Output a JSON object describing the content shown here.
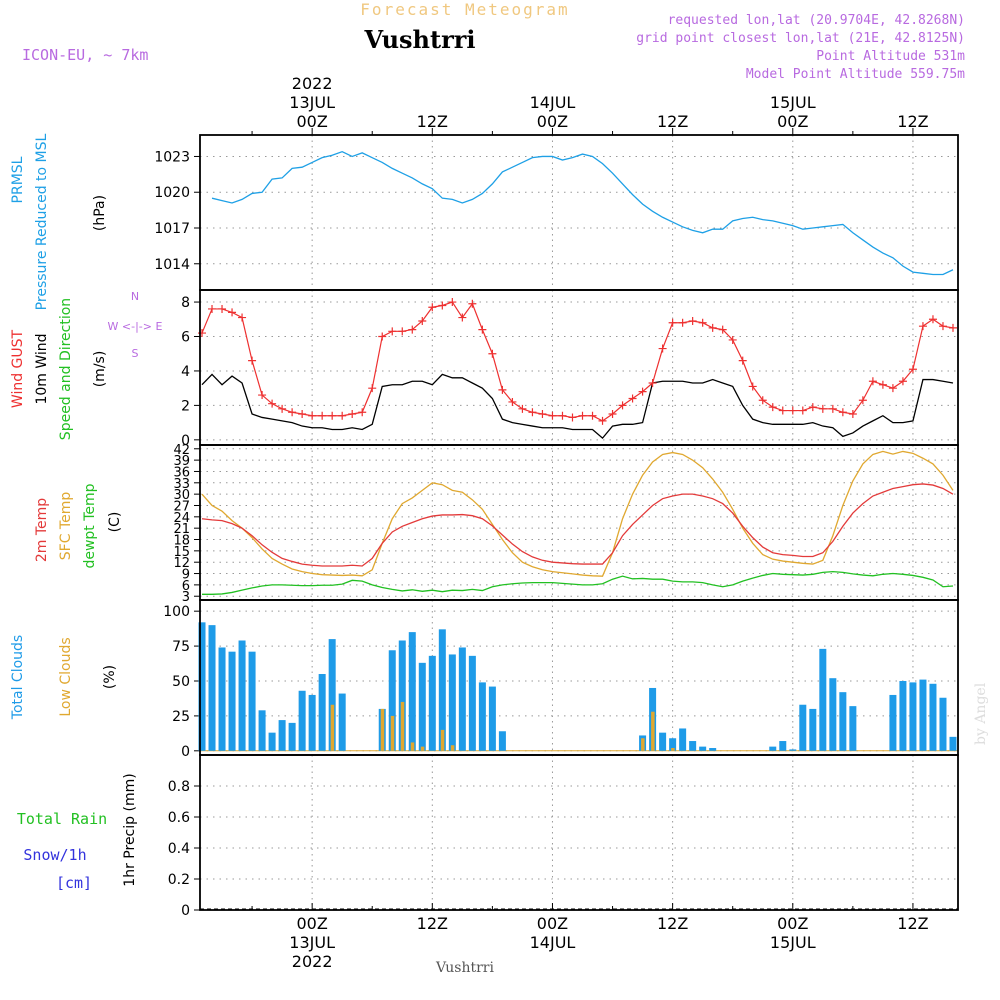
{
  "header": {
    "forecast_title": "Forecast Meteogram",
    "location": "Vushtrri",
    "model": "ICON-EU, ~ 7km",
    "requested": "requested lon,lat (20.9704E, 42.8268N)",
    "grid_point": "grid point closest lon,lat (21E, 42.8125N)",
    "point_altitude": "Point Altitude 531m",
    "model_altitude": "Model Point Altitude 559.75m",
    "footer_location": "Vushtrri",
    "credit": "by Angel"
  },
  "time_axis": {
    "top_labels": [
      {
        "lines": [
          "2022",
          "13JUL",
          "00Z"
        ],
        "t": 0
      },
      {
        "lines": [
          "12Z"
        ],
        "t": 12
      },
      {
        "lines": [
          "14JUL",
          "00Z"
        ],
        "t": 24
      },
      {
        "lines": [
          "12Z"
        ],
        "t": 36
      },
      {
        "lines": [
          "15JUL",
          "00Z"
        ],
        "t": 48
      },
      {
        "lines": [
          "12Z"
        ],
        "t": 60
      }
    ],
    "bottom_labels": [
      {
        "lines": [
          "00Z",
          "13JUL",
          "2022"
        ],
        "t": 0
      },
      {
        "lines": [
          "12Z"
        ],
        "t": 12
      },
      {
        "lines": [
          "00Z",
          "14JUL"
        ],
        "t": 24
      },
      {
        "lines": [
          "12Z"
        ],
        "t": 36
      },
      {
        "lines": [
          "00Z",
          "15JUL"
        ],
        "t": 48
      },
      {
        "lines": [
          "12Z"
        ],
        "t": 60
      }
    ],
    "range_hours": [
      -11.2,
      64.5
    ]
  },
  "panels": {
    "pressure": {
      "labels": [
        "PRMSL",
        "Pressure Reduced to MSL"
      ],
      "unit": "(hPa)",
      "ticks": [
        1014,
        1017,
        1020,
        1023
      ],
      "ylim": [
        1011.8,
        1024.8
      ]
    },
    "wind": {
      "labels": [
        "Wind GUST",
        "10m Wind",
        "Speed and Direction"
      ],
      "unit": "(m/s)",
      "compass": [
        "N",
        "W <-|-> E",
        "S"
      ],
      "ticks": [
        0,
        2,
        4,
        6,
        8
      ],
      "ylim": [
        -0.3,
        8.7
      ]
    },
    "temp": {
      "labels": [
        "2m Temp",
        "SFC Temp",
        "dewpt Temp"
      ],
      "unit": "(C)",
      "ticks": [
        3,
        6,
        9,
        12,
        15,
        18,
        21,
        24,
        27,
        30,
        33,
        36,
        39,
        42
      ],
      "ylim": [
        2,
        43
      ]
    },
    "clouds": {
      "labels": [
        "Total Clouds",
        "Low Clouds"
      ],
      "unit": "(%)",
      "ticks": [
        0,
        25,
        50,
        75,
        100
      ],
      "ylim": [
        -3,
        108
      ]
    },
    "precip": {
      "labels": [
        "Total Rain",
        "Snow/1h",
        "[cm]"
      ],
      "unit": "1hr Precip (mm)",
      "ticks": [
        0,
        0.2,
        0.4,
        0.6,
        0.8
      ],
      "ylim": [
        0,
        1.0
      ]
    }
  },
  "colors": {
    "pressure": "#1ea0e6",
    "gust": "#ee3030",
    "wind": "#000000",
    "temp2m": "#e33a3a",
    "sfc": "#e0a830",
    "dewpt": "#22c022",
    "total_clouds": "#1e9be8",
    "low_clouds": "#e0a830",
    "rain": "#22c022",
    "snow": "#3333dd",
    "header_purple": "#b86ae0",
    "forecast_title": "#f0c880"
  },
  "chart_data": {
    "type": "line",
    "x_units": "hours from 13JUL 00Z",
    "pressure_hPa": {
      "x": [
        -10,
        -9,
        -8,
        -7,
        -6,
        -5,
        -4,
        -3,
        -2,
        -1,
        0,
        1,
        2,
        3,
        4,
        5,
        6,
        7,
        8,
        9,
        10,
        11,
        12,
        13,
        14,
        15,
        16,
        17,
        18,
        19,
        20,
        21,
        22,
        23,
        24,
        25,
        26,
        27,
        28,
        29,
        30,
        31,
        32,
        33,
        34,
        35,
        36,
        37,
        38,
        39,
        40,
        41,
        42,
        43,
        44,
        45,
        46,
        47,
        48,
        49,
        50,
        51,
        52,
        53,
        54,
        55,
        56,
        57,
        58,
        59,
        60,
        61,
        62,
        63,
        64
      ],
      "y": [
        1019.5,
        1019.3,
        1019.1,
        1019.4,
        1019.9,
        1020.0,
        1021.1,
        1021.2,
        1022.0,
        1022.1,
        1022.5,
        1022.9,
        1023.1,
        1023.4,
        1023.0,
        1023.3,
        1022.9,
        1022.5,
        1022.0,
        1021.6,
        1021.2,
        1020.7,
        1020.3,
        1019.5,
        1019.4,
        1019.1,
        1019.4,
        1019.9,
        1020.7,
        1021.7,
        1022.1,
        1022.5,
        1022.9,
        1023.0,
        1023.0,
        1022.7,
        1022.9,
        1023.2,
        1023.0,
        1022.4,
        1021.6,
        1020.7,
        1019.8,
        1019.0,
        1018.4,
        1017.9,
        1017.5,
        1017.1,
        1016.8,
        1016.6,
        1016.9,
        1016.9,
        1017.6,
        1017.8,
        1017.9,
        1017.7,
        1017.6,
        1017.4,
        1017.2,
        1016.9,
        1017.0,
        1017.1,
        1017.2,
        1017.3,
        1016.6,
        1016.0,
        1015.4,
        1014.9,
        1014.5,
        1013.8,
        1013.3,
        1013.2,
        1013.1,
        1013.1,
        1013.5
      ]
    },
    "wind_gust_ms": {
      "x": [
        -11,
        -10,
        -9,
        -8,
        -7,
        -6,
        -5,
        -4,
        -3,
        -2,
        -1,
        0,
        1,
        2,
        3,
        4,
        5,
        6,
        7,
        8,
        9,
        10,
        11,
        12,
        13,
        14,
        15,
        16,
        17,
        18,
        19,
        20,
        21,
        22,
        23,
        24,
        25,
        26,
        27,
        28,
        29,
        30,
        31,
        32,
        33,
        34,
        35,
        36,
        37,
        38,
        39,
        40,
        41,
        42,
        43,
        44,
        45,
        46,
        47,
        48,
        49,
        50,
        51,
        52,
        53,
        54,
        55,
        56,
        57,
        58,
        59,
        60,
        61,
        62,
        63,
        64
      ],
      "y": [
        6.2,
        7.6,
        7.6,
        7.4,
        7.1,
        4.6,
        2.6,
        2.1,
        1.8,
        1.6,
        1.5,
        1.4,
        1.4,
        1.4,
        1.4,
        1.5,
        1.6,
        3.0,
        6.0,
        6.3,
        6.3,
        6.4,
        6.9,
        7.7,
        7.8,
        8.0,
        7.1,
        7.9,
        6.4,
        5.0,
        2.9,
        2.2,
        1.8,
        1.6,
        1.5,
        1.4,
        1.4,
        1.3,
        1.4,
        1.4,
        1.1,
        1.5,
        2.0,
        2.4,
        2.8,
        3.3,
        5.3,
        6.8,
        6.8,
        6.9,
        6.8,
        6.5,
        6.4,
        5.8,
        4.6,
        3.1,
        2.3,
        1.9,
        1.7,
        1.7,
        1.7,
        1.9,
        1.8,
        1.8,
        1.6,
        1.5,
        2.3,
        3.4,
        3.2,
        3.0,
        3.4,
        4.1,
        6.6,
        7.0,
        6.6,
        6.5
      ]
    },
    "wind_10m_ms": {
      "x": [
        -11,
        -10,
        -9,
        -8,
        -7,
        -6,
        -5,
        -4,
        -3,
        -2,
        -1,
        0,
        1,
        2,
        3,
        4,
        5,
        6,
        7,
        8,
        9,
        10,
        11,
        12,
        13,
        14,
        15,
        16,
        17,
        18,
        19,
        20,
        21,
        22,
        23,
        24,
        25,
        26,
        27,
        28,
        29,
        30,
        31,
        32,
        33,
        34,
        35,
        36,
        37,
        38,
        39,
        40,
        41,
        42,
        43,
        44,
        45,
        46,
        47,
        48,
        49,
        50,
        51,
        52,
        53,
        54,
        55,
        56,
        57,
        58,
        59,
        60,
        61,
        62,
        63,
        64
      ],
      "y": [
        3.2,
        3.8,
        3.2,
        3.7,
        3.3,
        1.5,
        1.3,
        1.2,
        1.1,
        1.0,
        0.8,
        0.7,
        0.7,
        0.6,
        0.6,
        0.7,
        0.6,
        0.9,
        3.1,
        3.2,
        3.2,
        3.4,
        3.4,
        3.2,
        3.8,
        3.6,
        3.6,
        3.3,
        3.0,
        2.4,
        1.2,
        1.0,
        0.9,
        0.8,
        0.7,
        0.7,
        0.7,
        0.6,
        0.6,
        0.6,
        0.1,
        0.8,
        0.9,
        0.9,
        1.0,
        3.3,
        3.4,
        3.4,
        3.4,
        3.3,
        3.3,
        3.5,
        3.3,
        3.1,
        2.0,
        1.2,
        1.0,
        0.9,
        0.9,
        0.9,
        0.9,
        1.0,
        0.8,
        0.7,
        0.2,
        0.4,
        0.8,
        1.1,
        1.4,
        1.0,
        1.0,
        1.1,
        3.5,
        3.5,
        3.4,
        3.3
      ]
    },
    "temp_2m_C": {
      "x": [
        -11,
        -10,
        -9,
        -8,
        -7,
        -6,
        -5,
        -4,
        -3,
        -2,
        -1,
        0,
        1,
        2,
        3,
        4,
        5,
        6,
        7,
        8,
        9,
        10,
        11,
        12,
        13,
        14,
        15,
        16,
        17,
        18,
        19,
        20,
        21,
        22,
        23,
        24,
        25,
        26,
        27,
        28,
        29,
        30,
        31,
        32,
        33,
        34,
        35,
        36,
        37,
        38,
        39,
        40,
        41,
        42,
        43,
        44,
        45,
        46,
        47,
        48,
        49,
        50,
        51,
        52,
        53,
        54,
        55,
        56,
        57,
        58,
        59,
        60,
        61,
        62,
        63,
        64
      ],
      "y": [
        23.5,
        23.2,
        23.0,
        22.2,
        21.0,
        19.0,
        16.6,
        14.6,
        13.0,
        12.2,
        11.5,
        11.2,
        11.0,
        11.0,
        11.0,
        11.2,
        11.0,
        13.0,
        17.0,
        20.0,
        21.5,
        22.5,
        23.5,
        24.2,
        24.5,
        24.5,
        24.6,
        24.3,
        23.5,
        21.6,
        19.2,
        16.8,
        14.8,
        13.4,
        12.5,
        12.0,
        11.8,
        11.6,
        11.5,
        11.5,
        11.5,
        14.5,
        19.0,
        22.0,
        24.5,
        27.0,
        28.8,
        29.5,
        30.0,
        30.0,
        29.5,
        28.8,
        27.5,
        25.0,
        21.5,
        18.5,
        16.0,
        14.5,
        14.0,
        13.8,
        13.5,
        13.5,
        14.5,
        17.5,
        21.5,
        25.0,
        27.5,
        29.5,
        30.5,
        31.5,
        32.0,
        32.5,
        32.7,
        32.4,
        31.5,
        30.0
      ]
    },
    "temp_sfc_C": {
      "x": [
        -11,
        -10,
        -9,
        -8,
        -7,
        -6,
        -5,
        -4,
        -3,
        -2,
        -1,
        0,
        1,
        2,
        3,
        4,
        5,
        6,
        7,
        8,
        9,
        10,
        11,
        12,
        13,
        14,
        15,
        16,
        17,
        18,
        19,
        20,
        21,
        22,
        23,
        24,
        25,
        26,
        27,
        28,
        29,
        30,
        31,
        32,
        33,
        34,
        35,
        36,
        37,
        38,
        39,
        40,
        41,
        42,
        43,
        44,
        45,
        46,
        47,
        48,
        49,
        50,
        51,
        52,
        53,
        54,
        55,
        56,
        57,
        58,
        59,
        60,
        61,
        62,
        63,
        64
      ],
      "y": [
        30.0,
        27.0,
        25.5,
        23.0,
        21.0,
        18.5,
        15.5,
        13.0,
        11.5,
        10.2,
        9.5,
        9.0,
        8.7,
        8.6,
        8.5,
        8.6,
        8.4,
        10.0,
        17.0,
        23.5,
        27.5,
        29.0,
        31.0,
        33.0,
        32.5,
        31.0,
        30.5,
        28.5,
        26.0,
        22.0,
        18.0,
        14.5,
        12.0,
        10.8,
        10.0,
        9.5,
        9.2,
        8.9,
        8.6,
        8.4,
        8.3,
        14.5,
        23.5,
        30.0,
        35.0,
        38.5,
        40.5,
        41.0,
        40.5,
        39.0,
        37.0,
        34.0,
        30.5,
        26.0,
        21.0,
        17.0,
        14.0,
        12.8,
        12.3,
        12.0,
        11.7,
        11.5,
        12.5,
        19.0,
        27.0,
        33.5,
        38.0,
        40.5,
        41.3,
        40.6,
        41.3,
        40.8,
        39.5,
        38.0,
        35.0,
        31.0
      ]
    },
    "dewpt_C": {
      "x": [
        -11,
        -10,
        -9,
        -8,
        -7,
        -6,
        -5,
        -4,
        -3,
        -2,
        -1,
        0,
        1,
        2,
        3,
        4,
        5,
        6,
        7,
        8,
        9,
        10,
        11,
        12,
        13,
        14,
        15,
        16,
        17,
        18,
        19,
        20,
        21,
        22,
        23,
        24,
        25,
        26,
        27,
        28,
        29,
        30,
        31,
        32,
        33,
        34,
        35,
        36,
        37,
        38,
        39,
        40,
        41,
        42,
        43,
        44,
        45,
        46,
        47,
        48,
        49,
        50,
        51,
        52,
        53,
        54,
        55,
        56,
        57,
        58,
        59,
        60,
        61,
        62,
        63,
        64
      ],
      "y": [
        3.5,
        3.5,
        3.6,
        4.0,
        4.6,
        5.2,
        5.7,
        6.0,
        6.0,
        5.9,
        5.8,
        5.8,
        5.9,
        5.9,
        6.2,
        7.2,
        7.0,
        6.0,
        5.3,
        4.8,
        4.4,
        4.7,
        4.3,
        4.6,
        4.2,
        4.6,
        4.5,
        4.8,
        4.5,
        5.5,
        6.0,
        6.3,
        6.5,
        6.6,
        6.6,
        6.6,
        6.4,
        6.2,
        6.0,
        6.0,
        6.3,
        7.5,
        8.3,
        7.6,
        7.7,
        7.5,
        7.5,
        7.0,
        6.8,
        6.8,
        6.6,
        6.0,
        5.5,
        6.0,
        7.0,
        7.8,
        8.5,
        9.0,
        8.8,
        8.7,
        8.6,
        8.8,
        9.3,
        9.5,
        9.3,
        8.9,
        8.6,
        8.4,
        8.8,
        9.0,
        8.8,
        8.5,
        8.0,
        7.3,
        5.5,
        5.7
      ]
    },
    "total_clouds_pct": {
      "x": [
        -11,
        -10,
        -9,
        -8,
        -7,
        -6,
        -5,
        -4,
        -3,
        -2,
        -1,
        0,
        1,
        2,
        3,
        4,
        5,
        6,
        7,
        8,
        9,
        10,
        11,
        12,
        13,
        14,
        15,
        16,
        17,
        18,
        19,
        20,
        21,
        22,
        23,
        24,
        25,
        26,
        27,
        28,
        29,
        30,
        31,
        32,
        33,
        34,
        35,
        36,
        37,
        38,
        39,
        40,
        41,
        42,
        43,
        44,
        45,
        46,
        47,
        48,
        49,
        50,
        51,
        52,
        53,
        54,
        55,
        56,
        57,
        58,
        59,
        60,
        61,
        62,
        63,
        64
      ],
      "y": [
        92,
        90,
        74,
        71,
        79,
        71,
        29,
        13,
        22,
        20,
        43,
        40,
        55,
        80,
        41,
        0,
        0,
        0,
        30,
        72,
        79,
        85,
        63,
        68,
        87,
        69,
        74,
        68,
        49,
        46,
        14,
        0,
        0,
        0,
        0,
        0,
        0,
        0,
        0,
        0,
        0,
        0,
        0,
        0,
        11,
        45,
        13,
        9,
        16,
        7,
        3,
        2,
        0,
        0,
        0,
        0,
        0,
        3,
        7,
        1,
        33,
        30,
        73,
        52,
        42,
        32,
        0,
        0,
        0,
        40,
        50,
        49,
        51,
        48,
        38,
        10
      ]
    },
    "low_clouds_pct": {
      "x": [
        2,
        7,
        8,
        9,
        10,
        11,
        13,
        14,
        33,
        34,
        36
      ],
      "y": [
        33,
        30,
        25,
        35,
        6,
        3,
        15,
        4,
        9,
        28,
        2
      ]
    },
    "rain_mm": {
      "x": [],
      "y": []
    },
    "snow_cm": {
      "x": [],
      "y": []
    }
  }
}
